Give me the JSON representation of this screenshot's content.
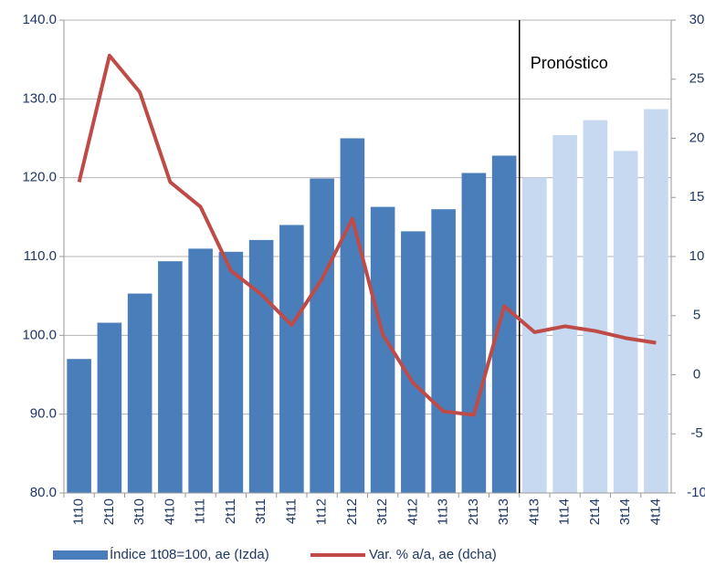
{
  "chart_data": {
    "type": "bar_line",
    "categories": [
      "1t10",
      "2t10",
      "3t10",
      "4t10",
      "1t11",
      "2t11",
      "3t11",
      "4t11",
      "1t12",
      "2t12",
      "3t12",
      "4t12",
      "1t13",
      "2t13",
      "3t13",
      "4t13",
      "1t14",
      "2t14",
      "3t14",
      "4t14"
    ],
    "series": [
      {
        "name": "Índice 1t08=100, ae (Izda)",
        "type": "bar",
        "color": "#4a7ebb",
        "colors": [
          "#4a7ebb",
          "#4a7ebb",
          "#4a7ebb",
          "#4a7ebb",
          "#4a7ebb",
          "#4a7ebb",
          "#4a7ebb",
          "#4a7ebb",
          "#4a7ebb",
          "#4a7ebb",
          "#4a7ebb",
          "#4a7ebb",
          "#4a7ebb",
          "#4a7ebb",
          "#4a7ebb",
          "#c6d9f1",
          "#c6d9f1",
          "#c6d9f1",
          "#c6d9f1",
          "#c6d9f1"
        ],
        "values": [
          97.0,
          101.6,
          105.3,
          109.4,
          111.0,
          110.6,
          112.1,
          114.0,
          119.9,
          125.0,
          116.3,
          113.2,
          116.0,
          120.6,
          122.8,
          120.0,
          125.4,
          127.3,
          123.4,
          128.7
        ]
      },
      {
        "name": "Var. % a/a, ae (dcha)",
        "type": "line",
        "axis": "y2",
        "color": "#be4b48",
        "values": [
          16.3,
          27.0,
          23.9,
          16.3,
          14.2,
          8.8,
          6.8,
          4.2,
          8.1,
          13.2,
          3.4,
          -0.7,
          -3.1,
          -3.4,
          5.8,
          3.6,
          4.1,
          3.7,
          3.1,
          2.7
        ]
      }
    ],
    "annotation": "Pronóstico",
    "ylim": [
      80,
      140
    ],
    "yticks": [
      {
        "value": 80,
        "label": "80.0"
      },
      {
        "value": 90,
        "label": "90.0"
      },
      {
        "value": 100,
        "label": "100.0"
      },
      {
        "value": 110,
        "label": "110.0"
      },
      {
        "value": 120,
        "label": "120.0"
      },
      {
        "value": 130,
        "label": "130.0"
      },
      {
        "value": 140,
        "label": "140.0"
      }
    ],
    "y2lim": [
      -10,
      30
    ],
    "y2ticks": [
      -10,
      -5,
      0,
      5,
      10,
      15,
      20,
      25,
      30
    ],
    "grid": true
  }
}
